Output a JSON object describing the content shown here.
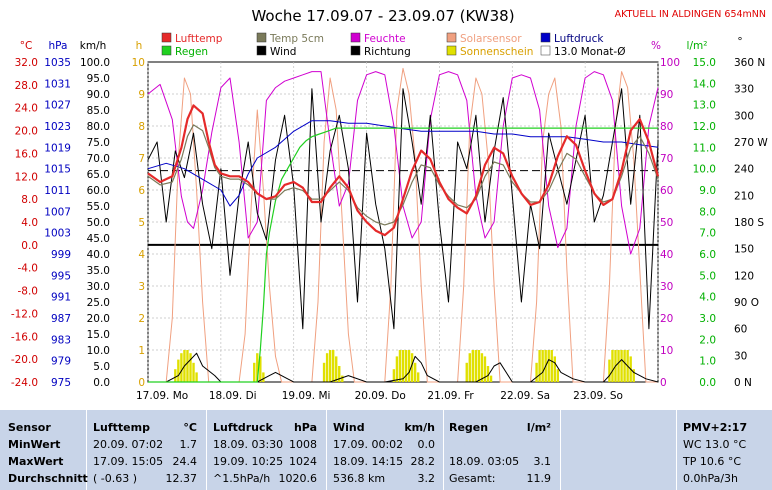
{
  "title": "Woche 17.09.07 - 23.09.07 (KW38)",
  "location": "AKTUELL IN ALDINGEN 654mNN",
  "colors": {
    "lufttemp": "#e52a2a",
    "temp5cm": "#7a7a5a",
    "feuchte": "#d000d0",
    "solar": "#f0a080",
    "luftdruck": "#0000c8",
    "regen": "#20d020",
    "wind": "#000000",
    "richtung": "#000000",
    "sonne": "#e0e000",
    "red_axis": "#d00000",
    "blue_axis": "#0000c0",
    "green_axis": "#00b000",
    "magenta_axis": "#c000c0",
    "orange_axis": "#d8a000",
    "bottom_bg": "#c8d4e8"
  },
  "legend": {
    "row1": [
      "Lufttemp",
      "Temp 5cm",
      "Feuchte",
      "Solarsensor",
      "Luftdruck"
    ],
    "row2": [
      "Regen",
      "Wind",
      "Richtung",
      "Sonnenschein",
      "13.0 Monat-Ø"
    ]
  },
  "axis_headers": {
    "temp": "°C",
    "pressure": "hPa",
    "wind": "km/h",
    "sun": "h",
    "humidity": "%",
    "rain": "l/m²",
    "direction": "°"
  },
  "axes": {
    "temp": [
      "32.0",
      "28.0",
      "24.0",
      "20.0",
      "16.0",
      "12.0",
      "8.0",
      "4.0",
      "0.0",
      "-4.0",
      "-8.0",
      "-12.0",
      "-16.0",
      "-20.0",
      "-24.0"
    ],
    "pressure": [
      "1035",
      "1031",
      "1027",
      "1023",
      "1019",
      "1015",
      "1011",
      "1007",
      "1003",
      "999",
      "995",
      "991",
      "987",
      "983",
      "979",
      "975"
    ],
    "wind": [
      "100.0",
      "95.0",
      "90.0",
      "85.0",
      "80.0",
      "75.0",
      "70.0",
      "65.0",
      "60.0",
      "55.0",
      "50.0",
      "45.0",
      "40.0",
      "35.0",
      "30.0",
      "25.0",
      "20.0",
      "15.0",
      "10.0",
      "5.0",
      "0.0"
    ],
    "sun": [
      "10",
      "9",
      "8",
      "7",
      "6",
      "5",
      "4",
      "3",
      "2",
      "1",
      "0"
    ],
    "humidity": [
      "100",
      "90",
      "80",
      "70",
      "60",
      "50",
      "40",
      "30",
      "20",
      "10",
      "0"
    ],
    "rain": [
      "15.0",
      "14.0",
      "13.0",
      "12.0",
      "11.0",
      "10.0",
      "9.0",
      "8.0",
      "7.0",
      "6.0",
      "5.0",
      "4.0",
      "3.0",
      "2.0",
      "1.0",
      "0.0"
    ],
    "direction": [
      "360 N",
      "330",
      "300",
      "270 W",
      "240",
      "210",
      "180 S",
      "150",
      "120",
      "90 O",
      "60",
      "30",
      "0 N"
    ],
    "days": [
      "17.09. Mo",
      "18.09. Di",
      "19.09. Mi",
      "20.09. Do",
      "21.09. Fr",
      "22.09. Sa",
      "23.09. So"
    ]
  },
  "chart_data": {
    "type": "line",
    "x_unit": "hours since 17.09.07 00:00",
    "xlim": [
      0,
      168
    ],
    "ylim_temp": [
      -24,
      32
    ],
    "ylim_pressure": [
      975,
      1035
    ],
    "ylim_humidity": [
      0,
      100
    ],
    "ylim_rain": [
      0,
      15
    ],
    "month_avg_temp": 13.0,
    "series": [
      {
        "name": "Lufttemp",
        "x": [
          0,
          4,
          8,
          11,
          13,
          15,
          18,
          20,
          22,
          24,
          27,
          30,
          33,
          36,
          39,
          42,
          45,
          48,
          51,
          54,
          57,
          60,
          63,
          66,
          69,
          72,
          75,
          78,
          81,
          84,
          87,
          90,
          93,
          96,
          99,
          102,
          105,
          108,
          111,
          114,
          117,
          120,
          123,
          126,
          129,
          132,
          135,
          138,
          141,
          144,
          147,
          150,
          153,
          156,
          159,
          162,
          165,
          168
        ],
        "values": [
          12.5,
          11,
          12,
          17,
          22,
          24.4,
          23,
          18,
          14,
          12.5,
          12,
          12,
          11,
          9,
          8,
          8.5,
          10.5,
          11,
          10,
          7.5,
          7.5,
          10,
          12,
          10,
          6,
          4,
          2.5,
          1.7,
          3,
          8,
          13,
          16.5,
          15,
          11,
          8,
          6.5,
          5.5,
          8.5,
          14,
          17,
          16,
          12,
          9,
          7,
          7.5,
          10.5,
          15.5,
          19,
          17.5,
          13,
          9,
          7,
          8,
          13,
          20,
          22,
          18,
          12
        ]
      },
      {
        "name": "Temp 5cm",
        "x": [
          0,
          4,
          8,
          11,
          13,
          15,
          18,
          20,
          22,
          24,
          27,
          30,
          33,
          36,
          39,
          42,
          45,
          48,
          51,
          54,
          57,
          60,
          63,
          66,
          69,
          72,
          75,
          78,
          81,
          84,
          87,
          90,
          93,
          96,
          99,
          102,
          105,
          108,
          111,
          114,
          117,
          120,
          123,
          126,
          129,
          132,
          135,
          138,
          141,
          144,
          147,
          150,
          153,
          156,
          159,
          162,
          165,
          168
        ],
        "values": [
          12,
          10.5,
          11,
          15,
          19,
          21,
          20,
          17,
          13.5,
          12,
          11.5,
          11.5,
          10.5,
          9,
          8,
          8,
          9.5,
          10,
          9.5,
          8,
          8,
          9.5,
          11,
          9.5,
          6.5,
          5,
          4,
          3.5,
          4,
          7,
          11,
          14,
          13.5,
          10.5,
          8.5,
          7,
          6.5,
          8,
          12,
          14.5,
          14,
          11,
          9,
          7.5,
          7.5,
          9.5,
          13,
          16,
          15,
          12,
          9,
          7.5,
          8,
          12,
          17,
          19,
          16,
          11.5
        ]
      },
      {
        "name": "Feuchte",
        "x": [
          0,
          4,
          8,
          11,
          13,
          15,
          18,
          21,
          24,
          27,
          30,
          33,
          36,
          39,
          42,
          45,
          48,
          51,
          54,
          57,
          60,
          63,
          66,
          69,
          72,
          75,
          78,
          81,
          84,
          87,
          90,
          93,
          96,
          99,
          102,
          105,
          108,
          111,
          114,
          117,
          120,
          123,
          126,
          129,
          132,
          135,
          138,
          141,
          144,
          147,
          150,
          153,
          156,
          159,
          162,
          165,
          168
        ],
        "values": [
          90,
          93,
          82,
          58,
          50,
          48,
          60,
          78,
          92,
          95,
          75,
          45,
          50,
          88,
          92,
          94,
          95,
          96,
          97,
          97,
          75,
          55,
          62,
          88,
          96,
          97,
          96,
          80,
          55,
          45,
          50,
          82,
          96,
          97,
          96,
          88,
          58,
          45,
          50,
          80,
          95,
          96,
          95,
          85,
          55,
          42,
          48,
          80,
          95,
          97,
          96,
          88,
          55,
          40,
          48,
          80,
          92
        ]
      },
      {
        "name": "Solarsensor",
        "x": [
          0,
          6,
          8,
          10,
          12,
          14,
          16,
          18,
          20,
          24,
          30,
          32,
          34,
          36,
          38,
          40,
          42,
          44,
          48,
          54,
          56,
          58,
          60,
          62,
          64,
          66,
          68,
          72,
          78,
          80,
          82,
          84,
          86,
          88,
          90,
          92,
          96,
          102,
          104,
          106,
          108,
          110,
          112,
          114,
          116,
          120,
          126,
          128,
          130,
          132,
          134,
          136,
          138,
          140,
          144,
          150,
          152,
          154,
          156,
          158,
          160,
          162,
          164,
          168
        ],
        "values": [
          0,
          0,
          20,
          70,
          95,
          90,
          60,
          25,
          0,
          0,
          0,
          15,
          55,
          85,
          60,
          30,
          8,
          0,
          0,
          0,
          25,
          75,
          95,
          85,
          50,
          15,
          0,
          0,
          0,
          30,
          85,
          98,
          90,
          70,
          30,
          0,
          0,
          0,
          30,
          80,
          95,
          90,
          70,
          30,
          0,
          0,
          0,
          25,
          75,
          90,
          95,
          80,
          35,
          0,
          0,
          0,
          30,
          80,
          97,
          92,
          70,
          35,
          0,
          0
        ]
      },
      {
        "name": "Luftdruck",
        "x": [
          0,
          6,
          12,
          18,
          24,
          27,
          30,
          33,
          36,
          42,
          48,
          54,
          60,
          66,
          72,
          78,
          84,
          90,
          96,
          102,
          108,
          114,
          120,
          126,
          132,
          138,
          144,
          150,
          156,
          162,
          168
        ],
        "values": [
          1015,
          1016,
          1015,
          1013,
          1011,
          1008,
          1010,
          1014,
          1017,
          1019,
          1022,
          1024,
          1024,
          1023.5,
          1023.5,
          1023,
          1022.5,
          1022,
          1022,
          1022,
          1022,
          1021.5,
          1021.5,
          1021,
          1021,
          1021,
          1020.5,
          1020,
          1020,
          1019.5,
          1019
        ]
      },
      {
        "name": "Regen",
        "x": [
          0,
          36,
          37,
          38,
          39,
          40,
          42,
          44,
          46,
          48,
          50,
          52,
          54,
          56,
          58,
          60,
          62,
          64,
          168
        ],
        "values": [
          0,
          0,
          1.5,
          3.5,
          6,
          7,
          8.5,
          9.5,
          10,
          10.5,
          11,
          11.3,
          11.5,
          11.6,
          11.7,
          11.8,
          11.9,
          11.9,
          11.9
        ]
      },
      {
        "name": "Sonnenschein",
        "x": [
          9,
          10,
          11,
          12,
          13,
          14,
          15,
          16,
          35,
          36,
          37,
          38,
          58,
          59,
          60,
          61,
          62,
          63,
          64,
          81,
          82,
          83,
          84,
          85,
          86,
          87,
          88,
          89,
          105,
          106,
          107,
          108,
          109,
          110,
          111,
          112,
          113,
          128,
          129,
          130,
          131,
          132,
          133,
          134,
          135,
          152,
          153,
          154,
          155,
          156,
          157,
          158,
          159,
          160
        ],
        "values": [
          0.4,
          0.7,
          0.9,
          1.0,
          1.0,
          0.9,
          0.6,
          0.3,
          0.6,
          0.9,
          0.8,
          0.3,
          0.6,
          0.9,
          1.0,
          1.0,
          0.8,
          0.5,
          0.2,
          0.4,
          0.8,
          1.0,
          1.0,
          1.0,
          1.0,
          0.9,
          0.6,
          0.3,
          0.6,
          0.9,
          1.0,
          1.0,
          1.0,
          0.9,
          0.8,
          0.5,
          0.2,
          0.6,
          1.0,
          1.0,
          1.0,
          1.0,
          1.0,
          0.8,
          0.4,
          0.7,
          1.0,
          1.0,
          1.0,
          1.0,
          1.0,
          1.0,
          0.8,
          0.4
        ]
      },
      {
        "name": "Wind",
        "x": [
          0,
          6,
          10,
          12,
          14,
          16,
          18,
          22,
          24,
          30,
          36,
          40,
          42,
          46,
          48,
          54,
          60,
          66,
          72,
          78,
          84,
          86,
          88,
          90,
          92,
          96,
          102,
          108,
          112,
          114,
          116,
          118,
          120,
          126,
          130,
          132,
          134,
          136,
          140,
          144,
          150,
          152,
          154,
          156,
          158,
          160,
          162,
          164,
          168
        ],
        "values": [
          0,
          0,
          2,
          5,
          7,
          9,
          5,
          2,
          0,
          0,
          0,
          2,
          3,
          1,
          0,
          0,
          0,
          2,
          0,
          0,
          1,
          3,
          8,
          6,
          2,
          0,
          0,
          0,
          2,
          5,
          6,
          3,
          0,
          0,
          3,
          7,
          6,
          3,
          1,
          0,
          0,
          2,
          5,
          7,
          5,
          3,
          2,
          1,
          0
        ]
      },
      {
        "name": "Richtung",
        "x": [
          0,
          3,
          6,
          9,
          12,
          15,
          18,
          21,
          24,
          27,
          30,
          33,
          36,
          39,
          42,
          45,
          48,
          51,
          54,
          57,
          60,
          63,
          66,
          69,
          72,
          75,
          78,
          81,
          84,
          87,
          90,
          93,
          96,
          99,
          102,
          105,
          108,
          111,
          114,
          117,
          120,
          123,
          126,
          129,
          132,
          135,
          138,
          141,
          144,
          147,
          150,
          153,
          156,
          159,
          162,
          165,
          168
        ],
        "values": [
          250,
          270,
          180,
          260,
          230,
          280,
          200,
          150,
          240,
          120,
          210,
          270,
          190,
          160,
          250,
          300,
          220,
          60,
          330,
          180,
          260,
          300,
          240,
          90,
          280,
          200,
          150,
          60,
          330,
          270,
          200,
          300,
          180,
          90,
          270,
          240,
          300,
          180,
          260,
          320,
          210,
          90,
          200,
          150,
          280,
          240,
          200,
          250,
          300,
          180,
          210,
          270,
          330,
          200,
          300,
          60,
          270
        ]
      }
    ]
  },
  "bottom": {
    "sensor": {
      "header": "Sensor",
      "rows": [
        "MinWert",
        "MaxWert",
        "Durchschnitt"
      ]
    },
    "lufttemp": {
      "header": "Lufttemp",
      "unit": "°C",
      "rows": [
        [
          "20.09.  07:02",
          "1.7"
        ],
        [
          "17.09.  15:05",
          "24.4"
        ],
        [
          "( -0.63 )",
          "12.37"
        ]
      ]
    },
    "luftdruck": {
      "header": "Luftdruck",
      "unit": "hPa",
      "rows": [
        [
          "18.09.  03:30",
          "1008"
        ],
        [
          "19.09.  10:25",
          "1024"
        ],
        [
          "^1.5hPa/h",
          "1020.6"
        ]
      ]
    },
    "wind": {
      "header": "Wind",
      "unit": "km/h",
      "rows": [
        [
          "17.09.  00:02",
          "0.0"
        ],
        [
          "18.09.  14:15",
          "28.2"
        ],
        [
          "536.8 km",
          "3.2"
        ]
      ]
    },
    "regen": {
      "header": "Regen",
      "unit": "l/m²",
      "rows": [
        [
          "",
          ""
        ],
        [
          "18.09.  03:05",
          "3.1"
        ],
        [
          "Gesamt:",
          "11.9"
        ]
      ]
    },
    "pmv": {
      "header": "PMV+2:17",
      "rows": [
        "WC 13.0 °C",
        "TP 10.6 °C",
        "0.0hPa/3h"
      ]
    }
  }
}
